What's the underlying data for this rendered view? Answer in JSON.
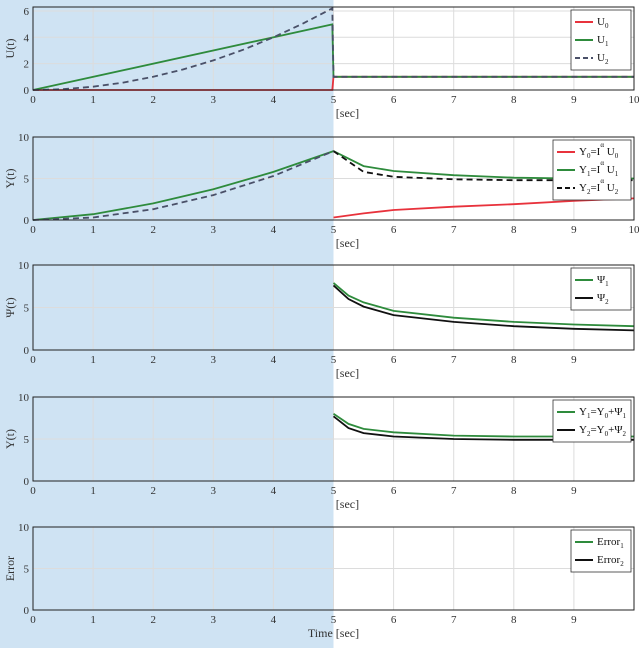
{
  "colors": {
    "shade": "#cfe3f3",
    "grid": "#dcdcdc",
    "axis": "#222222",
    "red": "#e8323c",
    "green": "#2e8b3c",
    "black": "#111111",
    "dashblue": "#4a5068"
  },
  "chart_data": [
    {
      "type": "line",
      "xlabel": "Time [sec]",
      "ylabel": "U(t)",
      "xlim": [
        0,
        10
      ],
      "ylim": [
        0,
        6.3
      ],
      "xticks": [
        "0",
        "1",
        "2",
        "3",
        "4",
        "5",
        "6",
        "7",
        "8",
        "9",
        "10"
      ],
      "yticks": [
        "0",
        "2",
        "4",
        "6"
      ],
      "shaded_x": [
        0,
        5
      ],
      "grid": true,
      "legend_position": "top-right",
      "series": [
        {
          "name": "U",
          "sub": "0",
          "color": "red",
          "dash": "solid",
          "legend": true,
          "x": [
            0,
            4.98,
            5.0,
            10
          ],
          "y": [
            0,
            0,
            1,
            1
          ]
        },
        {
          "name": "U",
          "sub": "1",
          "color": "green",
          "dash": "solid",
          "legend": true,
          "x": [
            0,
            4.98,
            5.0,
            10
          ],
          "y": [
            0,
            4.98,
            1,
            1
          ]
        },
        {
          "name": "U",
          "sub": "2",
          "color": "dashblue",
          "dash": "dashed",
          "legend": true,
          "x": [
            0,
            0.5,
            1,
            1.5,
            2,
            2.5,
            3,
            3.5,
            4,
            4.5,
            4.98,
            5.0,
            10
          ],
          "y": [
            0,
            0.06,
            0.25,
            0.56,
            1,
            1.56,
            2.25,
            3.06,
            4,
            5.06,
            6.2,
            1,
            1
          ]
        }
      ]
    },
    {
      "type": "line",
      "xlabel": "Time [sec]",
      "ylabel": "Y(t)",
      "xlim": [
        0,
        10
      ],
      "ylim": [
        0,
        10
      ],
      "xticks": [
        "0",
        "1",
        "2",
        "3",
        "4",
        "5",
        "6",
        "7",
        "8",
        "9",
        "10"
      ],
      "yticks": [
        "0",
        "5",
        "10"
      ],
      "shaded_x": [
        0,
        5
      ],
      "grid": true,
      "legend_position": "top-right",
      "series": [
        {
          "name": "Y",
          "sub": "0",
          "suffix": "=I",
          "sup": "α",
          "tail": " U",
          "tailsub": "0",
          "color": "red",
          "dash": "solid",
          "legend": true,
          "x": [
            5,
            5.5,
            6,
            7,
            8,
            9,
            10
          ],
          "y": [
            0.3,
            0.8,
            1.2,
            1.6,
            1.9,
            2.3,
            2.6
          ]
        },
        {
          "name": "Y",
          "sub": "1",
          "suffix": "=I",
          "sup": "α",
          "tail": " U",
          "tailsub": "1",
          "color": "green",
          "dash": "solid",
          "legend": true,
          "x": [
            0,
            1,
            2,
            3,
            4,
            5,
            5.5,
            6,
            7,
            8,
            9,
            10
          ],
          "y": [
            0,
            0.7,
            2.0,
            3.7,
            5.8,
            8.3,
            6.5,
            5.9,
            5.4,
            5.1,
            5.0,
            5.0
          ]
        },
        {
          "name": "Y",
          "sub": "2",
          "suffix": "=I",
          "sup": "α",
          "tail": " U",
          "tailsub": "2",
          "color": "black",
          "dash": "dashed",
          "legend": true,
          "x": [
            5,
            5.5,
            6,
            7,
            8,
            9,
            10
          ],
          "y": [
            8.3,
            5.8,
            5.2,
            4.9,
            4.8,
            4.8,
            4.8
          ]
        },
        {
          "name": "",
          "color": "dashblue",
          "dash": "dashed",
          "legend": false,
          "x": [
            0,
            1,
            2,
            3,
            4,
            5
          ],
          "y": [
            0,
            0.3,
            1.3,
            3.0,
            5.3,
            8.3
          ]
        }
      ]
    },
    {
      "type": "line",
      "xlabel": "Time [sec]",
      "ylabel": "Ψ(t)",
      "xlim": [
        0,
        10
      ],
      "ylim": [
        0,
        10
      ],
      "xticks": [
        "0",
        "1",
        "2",
        "3",
        "4",
        "5",
        "6",
        "7",
        "8",
        "9"
      ],
      "yticks": [
        "0",
        "5",
        "10"
      ],
      "shaded_x": [
        0,
        5
      ],
      "grid": true,
      "legend_position": "top-right",
      "series": [
        {
          "name": "Ψ",
          "sub": "1",
          "color": "green",
          "dash": "solid",
          "legend": true,
          "x": [
            5,
            5.25,
            5.5,
            6,
            7,
            8,
            9,
            10
          ],
          "y": [
            7.9,
            6.4,
            5.6,
            4.6,
            3.8,
            3.3,
            3.0,
            2.8
          ]
        },
        {
          "name": "Ψ",
          "sub": "2",
          "color": "black",
          "dash": "solid",
          "legend": true,
          "x": [
            5,
            5.25,
            5.5,
            6,
            7,
            8,
            9,
            10
          ],
          "y": [
            7.6,
            6.0,
            5.1,
            4.1,
            3.3,
            2.8,
            2.5,
            2.3
          ]
        }
      ]
    },
    {
      "type": "line",
      "xlabel": "Time [sec]",
      "ylabel": "Y(t)",
      "xlim": [
        0,
        10
      ],
      "ylim": [
        0,
        10
      ],
      "xticks": [
        "0",
        "1",
        "2",
        "3",
        "4",
        "5",
        "6",
        "7",
        "8",
        "9"
      ],
      "yticks": [
        "0",
        "5",
        "10"
      ],
      "shaded_x": [
        0,
        5
      ],
      "grid": true,
      "legend_position": "top-right",
      "series": [
        {
          "name": "Y",
          "sub": "1",
          "suffix": "=Y",
          "suffixsub": "0",
          "tail": "+Ψ",
          "tailsub": "1",
          "color": "green",
          "dash": "solid",
          "legend": true,
          "x": [
            5,
            5.25,
            5.5,
            6,
            7,
            8,
            9,
            10
          ],
          "y": [
            8.0,
            6.8,
            6.2,
            5.8,
            5.4,
            5.3,
            5.3,
            5.3
          ]
        },
        {
          "name": "Y",
          "sub": "2",
          "suffix": "=Y",
          "suffixsub": "0",
          "tail": "+Ψ",
          "tailsub": "2",
          "color": "black",
          "dash": "solid",
          "legend": true,
          "x": [
            5,
            5.25,
            5.5,
            6,
            7,
            8,
            9,
            10
          ],
          "y": [
            7.7,
            6.3,
            5.7,
            5.3,
            5.0,
            4.9,
            4.9,
            4.9
          ]
        }
      ]
    },
    {
      "type": "line",
      "xlabel": "Time [sec]",
      "ylabel": "Error",
      "xlim": [
        0,
        10
      ],
      "ylim": [
        0,
        10
      ],
      "xticks": [
        "0",
        "1",
        "2",
        "3",
        "4",
        "5",
        "6",
        "7",
        "8",
        "9"
      ],
      "yticks": [
        "0",
        "5",
        "10"
      ],
      "shaded_x": [
        0,
        5
      ],
      "grid": true,
      "legend_position": "top-right",
      "series": [
        {
          "name": "Error",
          "sub": "1",
          "color": "green",
          "dash": "solid",
          "legend": true,
          "x": [],
          "y": []
        },
        {
          "name": "Error",
          "sub": "2",
          "color": "black",
          "dash": "solid",
          "legend": true,
          "x": [],
          "y": []
        }
      ]
    }
  ]
}
